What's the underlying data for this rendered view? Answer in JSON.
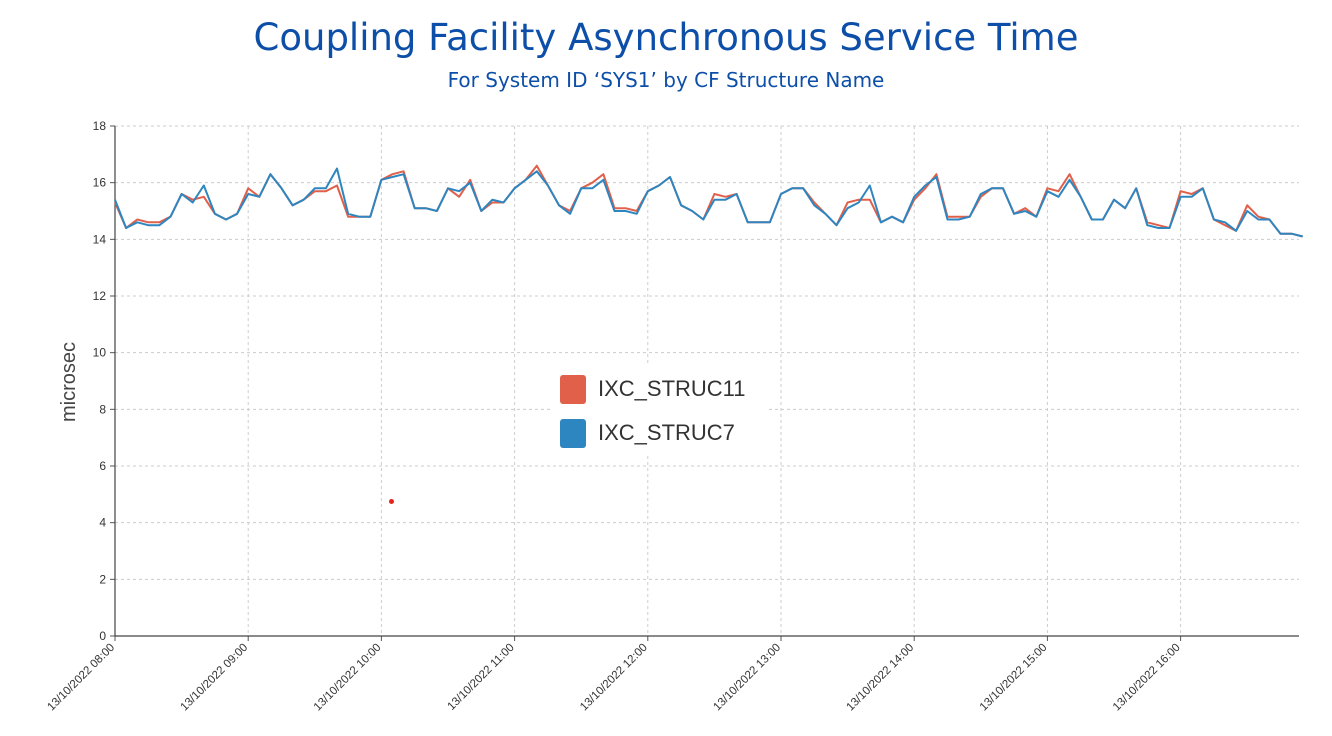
{
  "chart_data": {
    "type": "line",
    "title": "Coupling Facility Asynchronous Service Time",
    "subtitle": "For System ID ‘SYS1’ by CF Structure Name",
    "ylabel": "microsec",
    "xlabel": "",
    "ylim": [
      0,
      18
    ],
    "yticks": [
      "0",
      "2",
      "4",
      "6",
      "8",
      "10",
      "12",
      "14",
      "16",
      "18"
    ],
    "x_start": "13/10/2022 08:00",
    "x_interval_minutes": 5,
    "x_tick_labels": [
      "13/10/2022 08:00",
      "13/10/2022 09:00",
      "13/10/2022 10:00",
      "13/10/2022 11:00",
      "13/10/2022 12:00",
      "13/10/2022 13:00",
      "13/10/2022 14:00",
      "13/10/2022 15:00",
      "13/10/2022 16:00"
    ],
    "grid": true,
    "legend_position": "center",
    "series": [
      {
        "name": "IXC_STRUC11",
        "color": "#e0604a",
        "values": [
          15.3,
          14.4,
          14.7,
          14.6,
          14.6,
          14.8,
          15.6,
          15.4,
          15.5,
          14.9,
          14.7,
          14.9,
          15.8,
          15.5,
          16.3,
          15.8,
          15.2,
          15.4,
          15.7,
          15.7,
          15.9,
          14.8,
          14.8,
          14.8,
          16.1,
          16.3,
          16.4,
          15.1,
          15.1,
          15.0,
          15.8,
          15.5,
          16.1,
          15.0,
          15.3,
          15.3,
          15.8,
          16.1,
          16.6,
          15.9,
          15.2,
          15.0,
          15.8,
          16.0,
          16.3,
          15.1,
          15.1,
          15.0,
          15.7,
          15.9,
          16.2,
          15.2,
          15.0,
          14.7,
          15.6,
          15.5,
          15.6,
          14.6,
          14.6,
          14.6,
          15.6,
          15.8,
          15.8,
          15.3,
          14.9,
          14.5,
          15.3,
          15.4,
          15.4,
          14.6,
          14.8,
          14.6,
          15.4,
          15.8,
          16.3,
          14.8,
          14.8,
          14.8,
          15.5,
          15.8,
          15.8,
          14.9,
          15.1,
          14.8,
          15.8,
          15.7,
          16.3,
          15.5,
          14.7,
          14.7,
          15.4,
          15.1,
          15.8,
          14.6,
          14.5,
          14.4,
          15.7,
          15.6,
          15.8,
          14.7,
          14.5,
          14.3,
          15.2,
          14.8,
          14.7,
          14.2,
          14.2,
          14.1
        ]
      },
      {
        "name": "IXC_STRUC7",
        "color": "#2e86c1",
        "values": [
          15.4,
          14.4,
          14.6,
          14.5,
          14.5,
          14.8,
          15.6,
          15.3,
          15.9,
          14.9,
          14.7,
          14.9,
          15.6,
          15.5,
          16.3,
          15.8,
          15.2,
          15.4,
          15.8,
          15.8,
          16.5,
          14.9,
          14.8,
          14.8,
          16.1,
          16.2,
          16.3,
          15.1,
          15.1,
          15.0,
          15.8,
          15.7,
          16.0,
          15.0,
          15.4,
          15.3,
          15.8,
          16.1,
          16.4,
          15.9,
          15.2,
          14.9,
          15.8,
          15.8,
          16.1,
          15.0,
          15.0,
          14.9,
          15.7,
          15.9,
          16.2,
          15.2,
          15.0,
          14.7,
          15.4,
          15.4,
          15.6,
          14.6,
          14.6,
          14.6,
          15.6,
          15.8,
          15.8,
          15.2,
          14.9,
          14.5,
          15.1,
          15.3,
          15.9,
          14.6,
          14.8,
          14.6,
          15.5,
          15.9,
          16.2,
          14.7,
          14.7,
          14.8,
          15.6,
          15.8,
          15.8,
          14.9,
          15.0,
          14.8,
          15.7,
          15.5,
          16.1,
          15.5,
          14.7,
          14.7,
          15.4,
          15.1,
          15.8,
          14.5,
          14.4,
          14.4,
          15.5,
          15.5,
          15.8,
          14.7,
          14.6,
          14.3,
          15.0,
          14.7,
          14.7,
          14.2,
          14.2,
          14.1
        ]
      }
    ]
  }
}
